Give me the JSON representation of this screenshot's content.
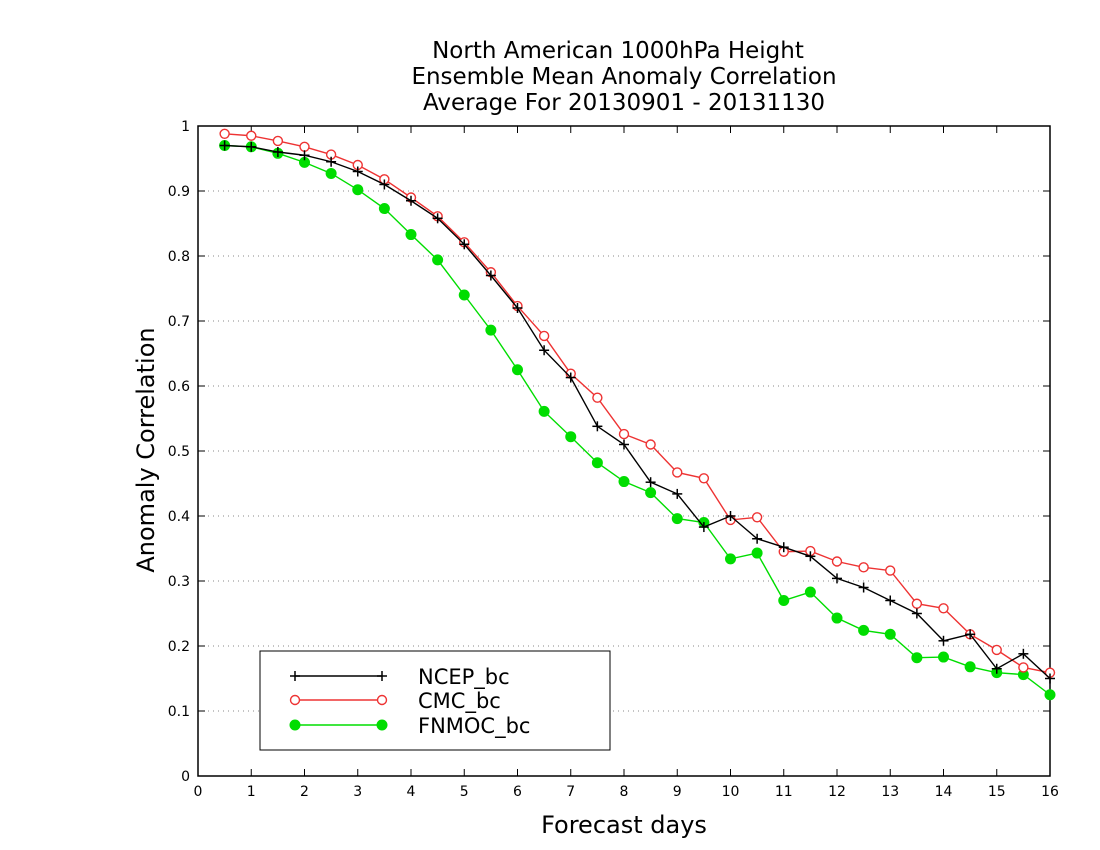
{
  "chart_data": {
    "type": "line",
    "title_lines": [
      "North American 1000hPa Height",
      "Ensemble Mean Anomaly Correlation",
      "Average For 20130901 - 20131130"
    ],
    "xlabel": "Forecast days",
    "ylabel": "Anomaly Correlation",
    "xlim": [
      0,
      16
    ],
    "ylim": [
      0,
      1
    ],
    "x_ticks": [
      "0",
      "1",
      "2",
      "3",
      "4",
      "5",
      "6",
      "7",
      "8",
      "9",
      "10",
      "11",
      "12",
      "13",
      "14",
      "15",
      "16"
    ],
    "y_ticks": [
      "0",
      "0.1",
      "0.2",
      "0.3",
      "0.4",
      "0.5",
      "0.6",
      "0.7",
      "0.8",
      "0.9",
      "1"
    ],
    "grid": "horizontal dotted",
    "legend_placement": "bottom-left",
    "x": [
      0.5,
      1,
      1.5,
      2,
      2.5,
      3,
      3.5,
      4,
      4.5,
      5,
      5.5,
      6,
      6.5,
      7,
      7.5,
      8,
      8.5,
      9,
      9.5,
      10,
      10.5,
      11,
      11.5,
      12,
      12.5,
      13,
      13.5,
      14,
      14.5,
      15,
      15.5,
      16
    ],
    "series": [
      {
        "name": "NCEP_bc",
        "color": "#000000",
        "marker": "plus",
        "values": [
          0.97,
          0.968,
          0.96,
          0.955,
          0.945,
          0.93,
          0.91,
          0.885,
          0.858,
          0.818,
          0.77,
          0.72,
          0.655,
          0.613,
          0.538,
          0.51,
          0.452,
          0.434,
          0.383,
          0.4,
          0.365,
          0.352,
          0.338,
          0.304,
          0.29,
          0.27,
          0.25,
          0.208,
          0.218,
          0.165,
          0.188,
          0.15
        ]
      },
      {
        "name": "CMC_bc",
        "color": "#ee3333",
        "marker": "open-circle",
        "values": [
          0.988,
          0.985,
          0.977,
          0.968,
          0.956,
          0.94,
          0.918,
          0.89,
          0.861,
          0.821,
          0.775,
          0.723,
          0.677,
          0.619,
          0.582,
          0.526,
          0.51,
          0.467,
          0.458,
          0.394,
          0.398,
          0.345,
          0.346,
          0.33,
          0.321,
          0.316,
          0.265,
          0.258,
          0.218,
          0.194,
          0.167,
          0.159
        ]
      },
      {
        "name": "FNMOC_bc",
        "color": "#00dd00",
        "marker": "filled-circle",
        "values": [
          0.97,
          0.968,
          0.958,
          0.944,
          0.927,
          0.902,
          0.873,
          0.833,
          0.794,
          0.74,
          0.686,
          0.625,
          0.561,
          0.522,
          0.482,
          0.453,
          0.436,
          0.396,
          0.39,
          0.334,
          0.343,
          0.27,
          0.283,
          0.243,
          0.224,
          0.218,
          0.182,
          0.183,
          0.168,
          0.159,
          0.156,
          0.125
        ]
      }
    ]
  }
}
